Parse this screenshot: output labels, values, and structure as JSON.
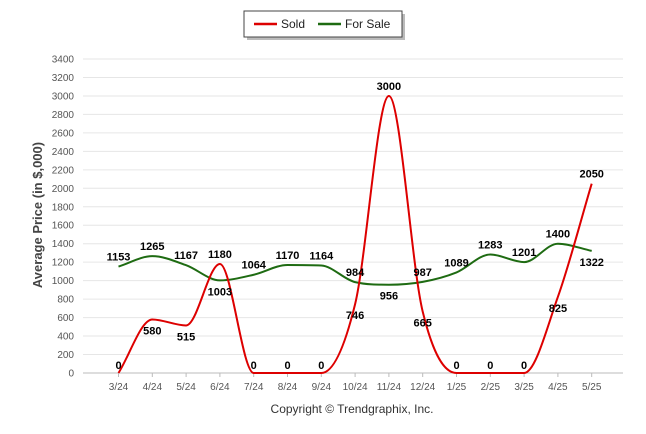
{
  "chart_data": {
    "type": "line",
    "categories": [
      "3/24",
      "4/24",
      "5/24",
      "6/24",
      "7/24",
      "8/24",
      "9/24",
      "10/24",
      "11/24",
      "12/24",
      "1/25",
      "2/25",
      "3/25",
      "4/25",
      "5/25"
    ],
    "series": [
      {
        "name": "Sold",
        "color": "#dd0000",
        "values": [
          0,
          580,
          515,
          1180,
          0,
          0,
          0,
          746,
          3000,
          665,
          0,
          0,
          0,
          825,
          2050
        ]
      },
      {
        "name": "For Sale",
        "color": "#1e6b12",
        "values": [
          1153,
          1265,
          1167,
          1003,
          1064,
          1170,
          1164,
          984,
          956,
          987,
          1089,
          1283,
          1201,
          1400,
          1322
        ]
      }
    ],
    "ylabel": "Average Price (in $,000)",
    "xlabel": "",
    "ylim": [
      0,
      3400
    ],
    "yticks": [
      0,
      200,
      400,
      600,
      800,
      1000,
      1200,
      1400,
      1600,
      1800,
      2000,
      2200,
      2400,
      2600,
      2800,
      3000,
      3200,
      3400
    ],
    "grid": true,
    "legend_position": "top-center"
  },
  "copyright": "Copyright © Trendgraphix, Inc."
}
